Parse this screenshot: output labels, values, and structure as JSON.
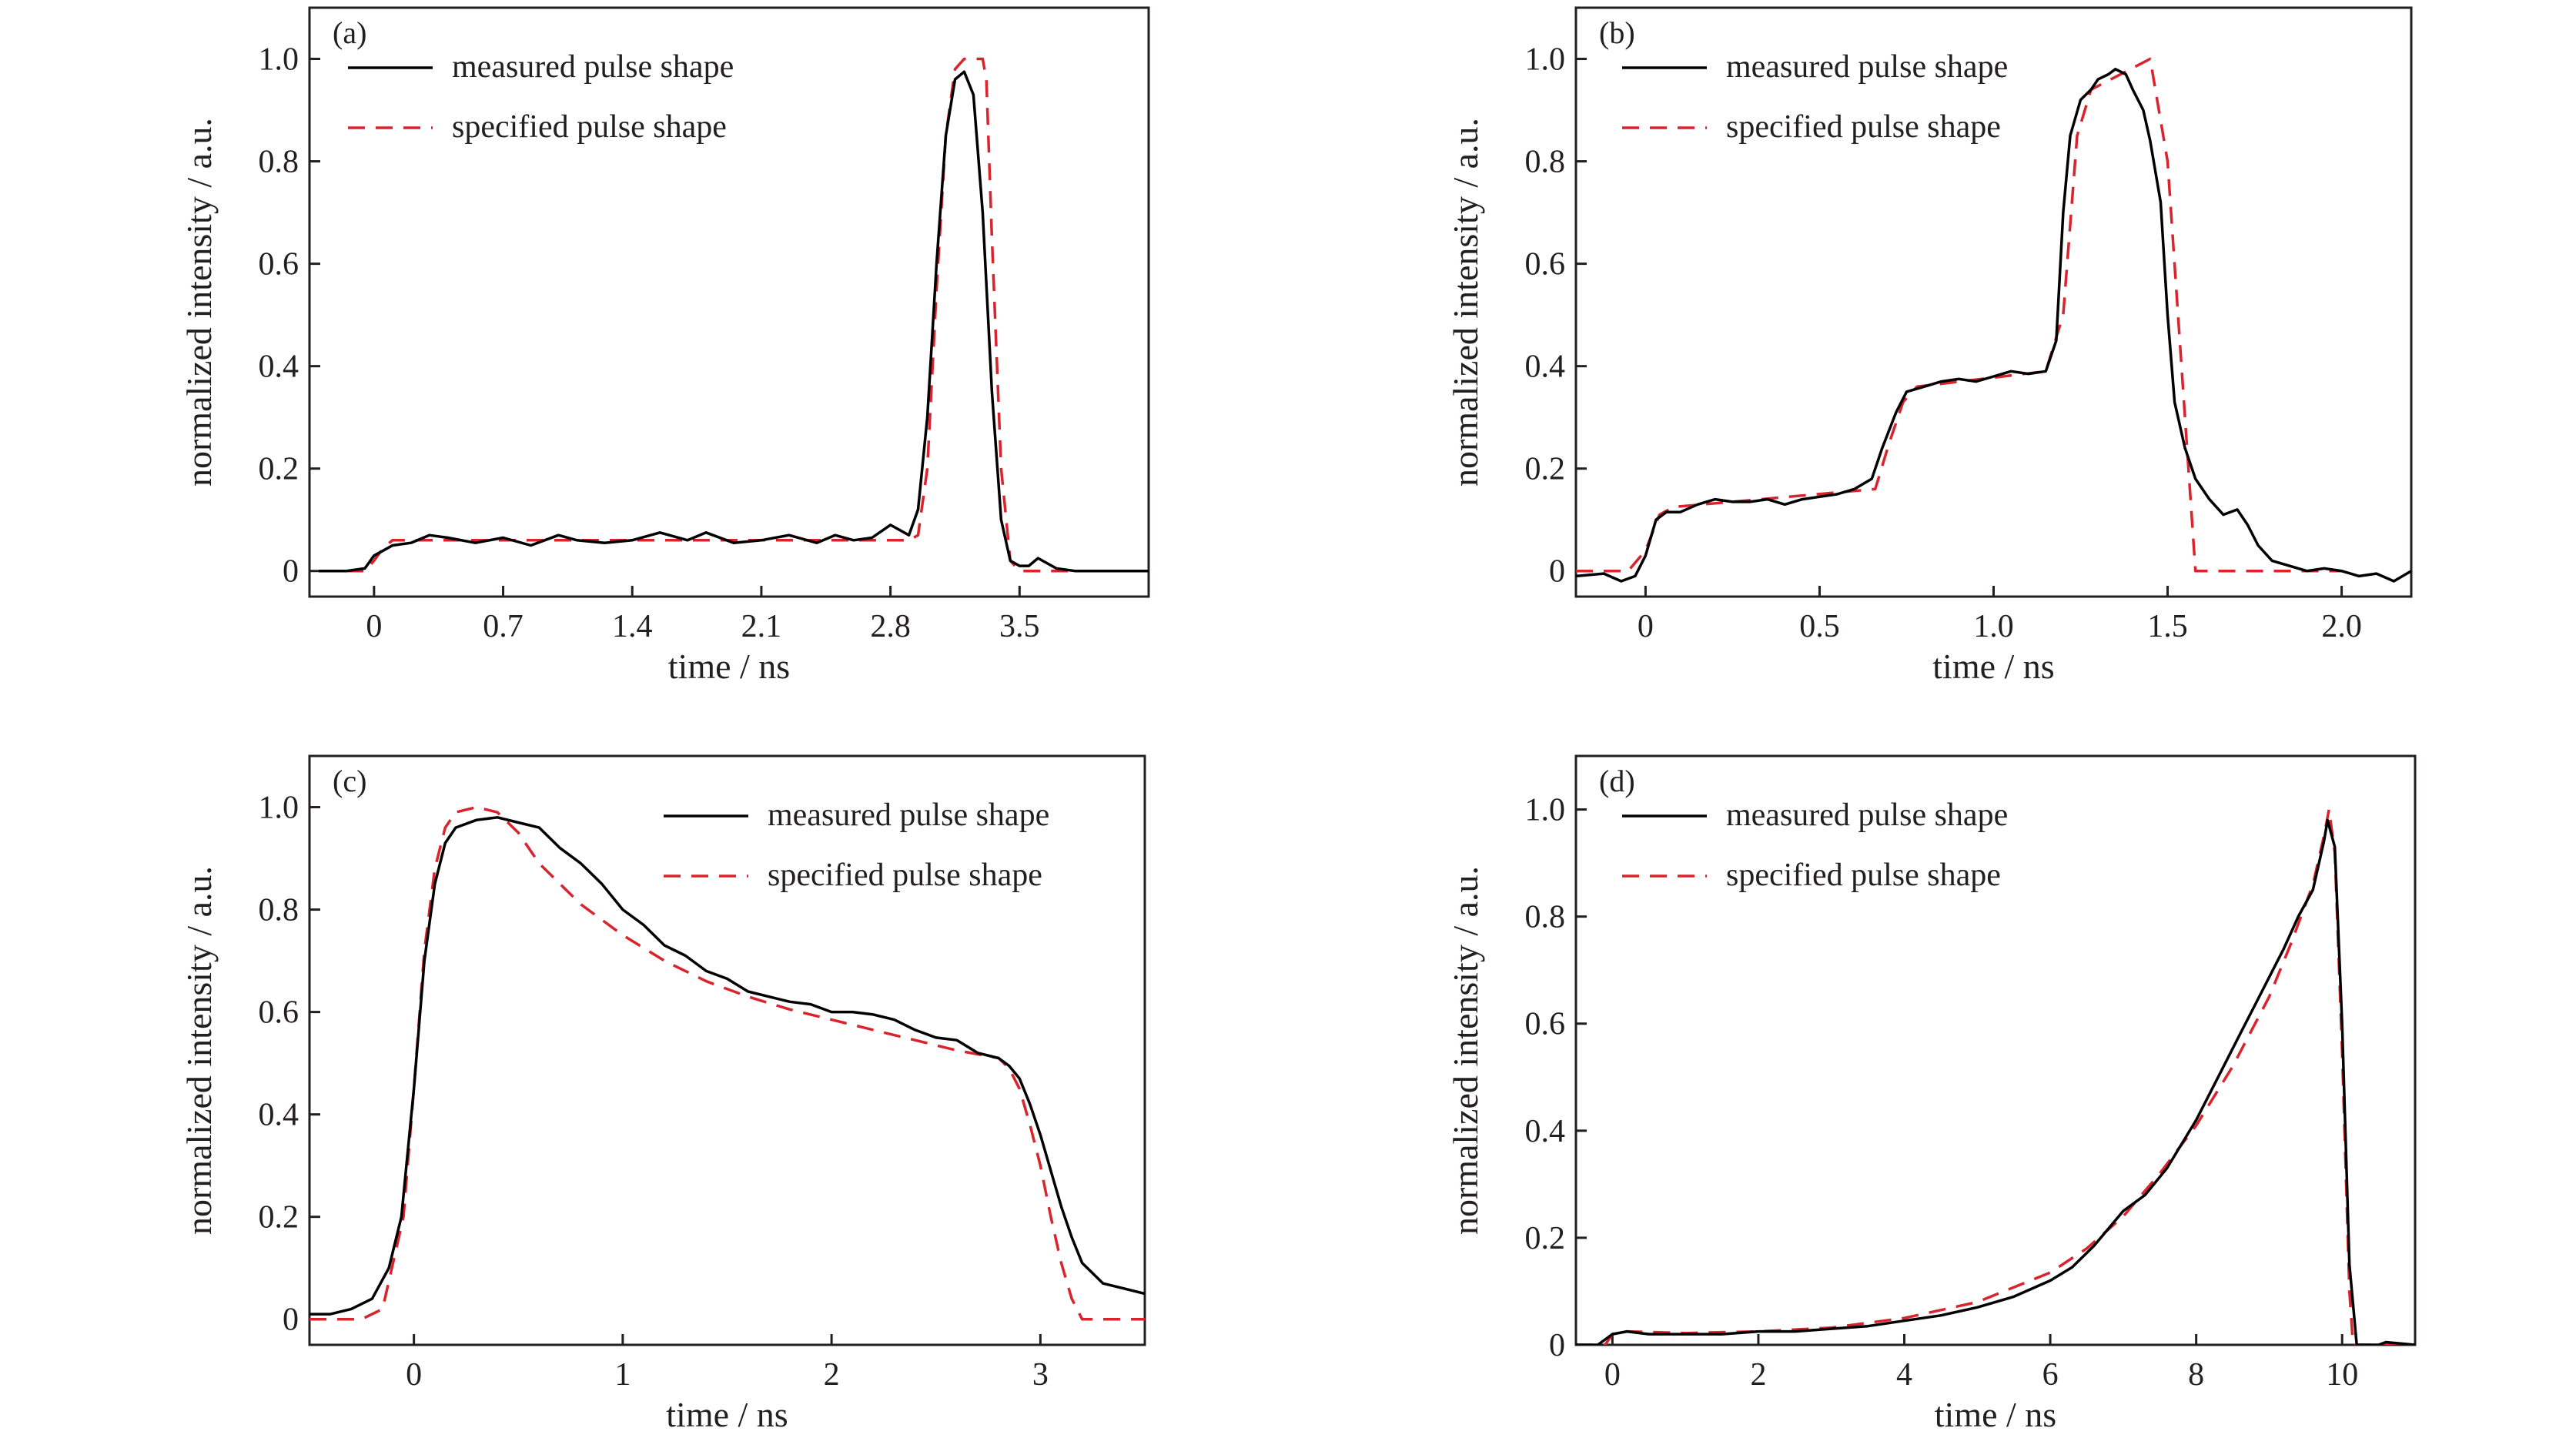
{
  "colors": {
    "measured": "#000000",
    "specified": "#d9232d",
    "axis": "#231f20"
  },
  "chart_data": [
    {
      "id": "a",
      "panel_label": "(a)",
      "type": "line",
      "xlabel": "time / ns",
      "ylabel": "normalized intensity / a.u.",
      "xlim": [
        -0.35,
        4.2
      ],
      "ylim": [
        -0.05,
        1.1
      ],
      "xticks": [
        0,
        0.7,
        1.4,
        2.1,
        2.8,
        3.5
      ],
      "xtick_labels": [
        "0",
        "0.7",
        "1.4",
        "2.1",
        "2.8",
        "3.5"
      ],
      "yticks": [
        0,
        0.2,
        0.4,
        0.6,
        0.8,
        1.0
      ],
      "ytick_labels": [
        "0",
        "0.2",
        "0.4",
        "0.6",
        "0.8",
        "1.0"
      ],
      "legend": {
        "position": "top-left",
        "entries": [
          "measured pulse shape",
          "specified pulse shape"
        ]
      },
      "series": [
        {
          "name": "measured pulse shape",
          "style": "solid",
          "x": [
            -0.3,
            -0.15,
            -0.05,
            0.0,
            0.1,
            0.2,
            0.3,
            0.4,
            0.55,
            0.7,
            0.85,
            1.0,
            1.1,
            1.25,
            1.4,
            1.55,
            1.7,
            1.8,
            1.95,
            2.1,
            2.25,
            2.4,
            2.5,
            2.6,
            2.7,
            2.8,
            2.9,
            2.95,
            3.0,
            3.05,
            3.1,
            3.15,
            3.2,
            3.25,
            3.3,
            3.35,
            3.4,
            3.45,
            3.5,
            3.55,
            3.6,
            3.7,
            3.8,
            3.9,
            4.2
          ],
          "y": [
            0,
            0,
            0.005,
            0.03,
            0.05,
            0.055,
            0.07,
            0.065,
            0.055,
            0.065,
            0.05,
            0.07,
            0.06,
            0.055,
            0.06,
            0.075,
            0.06,
            0.075,
            0.055,
            0.06,
            0.07,
            0.055,
            0.07,
            0.06,
            0.065,
            0.09,
            0.07,
            0.12,
            0.3,
            0.6,
            0.85,
            0.96,
            0.975,
            0.93,
            0.7,
            0.35,
            0.1,
            0.02,
            0.01,
            0.01,
            0.025,
            0.005,
            0,
            0,
            0
          ]
        },
        {
          "name": "specified pulse shape",
          "style": "dashed",
          "x": [
            -0.3,
            -0.05,
            0.0,
            0.05,
            0.1,
            2.9,
            2.95,
            3.0,
            3.05,
            3.1,
            3.15,
            3.2,
            3.3,
            3.32,
            3.35,
            3.4,
            3.45,
            3.5,
            3.55,
            4.2
          ],
          "y": [
            0,
            0,
            0.02,
            0.045,
            0.06,
            0.06,
            0.07,
            0.2,
            0.55,
            0.85,
            0.98,
            1.0,
            1.0,
            0.96,
            0.65,
            0.2,
            0.02,
            0,
            0,
            0
          ]
        }
      ]
    },
    {
      "id": "b",
      "panel_label": "(b)",
      "type": "line",
      "xlabel": "time / ns",
      "ylabel": "normalized intensity / a.u.",
      "xlim": [
        -0.2,
        2.2
      ],
      "ylim": [
        -0.05,
        1.1
      ],
      "xticks": [
        0,
        0.5,
        1.0,
        1.5,
        2.0
      ],
      "xtick_labels": [
        "0",
        "0.5",
        "1.0",
        "1.5",
        "2.0"
      ],
      "yticks": [
        0,
        0.2,
        0.4,
        0.6,
        0.8,
        1.0
      ],
      "ytick_labels": [
        "0",
        "0.2",
        "0.4",
        "0.6",
        "0.8",
        "1.0"
      ],
      "legend": {
        "position": "top-center",
        "entries": [
          "measured pulse shape",
          "specified pulse shape"
        ]
      },
      "series": [
        {
          "name": "measured pulse shape",
          "style": "solid",
          "x": [
            -0.2,
            -0.12,
            -0.07,
            -0.03,
            0.0,
            0.03,
            0.06,
            0.1,
            0.15,
            0.2,
            0.25,
            0.3,
            0.35,
            0.4,
            0.45,
            0.5,
            0.55,
            0.6,
            0.65,
            0.68,
            0.72,
            0.75,
            0.8,
            0.85,
            0.9,
            0.95,
            1.0,
            1.05,
            1.1,
            1.15,
            1.18,
            1.2,
            1.22,
            1.25,
            1.28,
            1.3,
            1.33,
            1.35,
            1.38,
            1.4,
            1.43,
            1.45,
            1.48,
            1.5,
            1.52,
            1.55,
            1.58,
            1.62,
            1.66,
            1.7,
            1.73,
            1.76,
            1.8,
            1.85,
            1.9,
            1.95,
            2.0,
            2.05,
            2.1,
            2.15,
            2.2
          ],
          "y": [
            -0.01,
            -0.005,
            -0.02,
            -0.01,
            0.03,
            0.1,
            0.115,
            0.115,
            0.13,
            0.14,
            0.135,
            0.135,
            0.14,
            0.13,
            0.14,
            0.145,
            0.15,
            0.16,
            0.18,
            0.24,
            0.31,
            0.35,
            0.36,
            0.37,
            0.375,
            0.37,
            0.38,
            0.39,
            0.385,
            0.39,
            0.45,
            0.7,
            0.85,
            0.92,
            0.94,
            0.96,
            0.97,
            0.98,
            0.97,
            0.94,
            0.9,
            0.84,
            0.72,
            0.5,
            0.33,
            0.24,
            0.18,
            0.14,
            0.11,
            0.12,
            0.09,
            0.05,
            0.02,
            0.01,
            0.0,
            0.005,
            0.0,
            -0.01,
            -0.005,
            -0.02,
            0.0
          ]
        },
        {
          "name": "specified pulse shape",
          "style": "dashed",
          "x": [
            -0.2,
            -0.05,
            0.0,
            0.04,
            0.08,
            0.66,
            0.7,
            0.74,
            0.78,
            1.15,
            1.2,
            1.24,
            1.28,
            1.45,
            1.5,
            1.55,
            1.58,
            2.0
          ],
          "y": [
            0,
            0,
            0.04,
            0.11,
            0.125,
            0.16,
            0.25,
            0.33,
            0.36,
            0.39,
            0.5,
            0.85,
            0.94,
            1.0,
            0.8,
            0.3,
            0.0,
            0.0
          ]
        }
      ]
    },
    {
      "id": "c",
      "panel_label": "(c)",
      "type": "line",
      "xlabel": "time / ns",
      "ylabel": "normalized intensity / a.u.",
      "xlim": [
        -0.5,
        3.5
      ],
      "ylim": [
        -0.05,
        1.1
      ],
      "xticks": [
        0,
        1,
        2,
        3
      ],
      "xtick_labels": [
        "0",
        "1",
        "2",
        "3"
      ],
      "yticks": [
        0,
        0.2,
        0.4,
        0.6,
        0.8,
        1.0
      ],
      "ytick_labels": [
        "0",
        "0.2",
        "0.4",
        "0.6",
        "0.8",
        "1.0"
      ],
      "legend": {
        "position": "top-right",
        "entries": [
          "measured pulse shape",
          "specified pulse shape"
        ]
      },
      "series": [
        {
          "name": "measured pulse shape",
          "style": "solid",
          "x": [
            -0.5,
            -0.4,
            -0.3,
            -0.2,
            -0.12,
            -0.06,
            0.0,
            0.05,
            0.1,
            0.15,
            0.2,
            0.3,
            0.4,
            0.5,
            0.6,
            0.7,
            0.8,
            0.9,
            1.0,
            1.1,
            1.2,
            1.3,
            1.4,
            1.5,
            1.6,
            1.7,
            1.8,
            1.9,
            2.0,
            2.1,
            2.2,
            2.3,
            2.4,
            2.5,
            2.6,
            2.7,
            2.8,
            2.85,
            2.9,
            2.95,
            3.0,
            3.05,
            3.1,
            3.15,
            3.2,
            3.3,
            3.4,
            3.5
          ],
          "y": [
            0.01,
            0.01,
            0.02,
            0.04,
            0.1,
            0.2,
            0.45,
            0.7,
            0.85,
            0.93,
            0.96,
            0.975,
            0.98,
            0.97,
            0.96,
            0.92,
            0.89,
            0.85,
            0.8,
            0.77,
            0.73,
            0.71,
            0.68,
            0.665,
            0.64,
            0.63,
            0.62,
            0.615,
            0.6,
            0.6,
            0.595,
            0.585,
            0.565,
            0.55,
            0.545,
            0.52,
            0.51,
            0.495,
            0.47,
            0.42,
            0.36,
            0.29,
            0.22,
            0.16,
            0.11,
            0.07,
            0.06,
            0.05
          ]
        },
        {
          "name": "specified pulse shape",
          "style": "dashed",
          "x": [
            -0.5,
            -0.25,
            -0.15,
            -0.05,
            0.0,
            0.05,
            0.1,
            0.15,
            0.2,
            0.3,
            0.4,
            0.5,
            0.6,
            0.8,
            1.0,
            1.2,
            1.4,
            1.6,
            1.8,
            2.0,
            2.2,
            2.4,
            2.6,
            2.8,
            2.85,
            2.9,
            2.95,
            3.0,
            3.05,
            3.1,
            3.15,
            3.2,
            3.5
          ],
          "y": [
            0,
            0,
            0.02,
            0.2,
            0.45,
            0.72,
            0.88,
            0.96,
            0.99,
            1.0,
            0.99,
            0.95,
            0.89,
            0.81,
            0.75,
            0.7,
            0.66,
            0.63,
            0.605,
            0.585,
            0.565,
            0.545,
            0.525,
            0.51,
            0.49,
            0.45,
            0.38,
            0.3,
            0.2,
            0.11,
            0.04,
            0.0,
            0.0
          ]
        }
      ]
    },
    {
      "id": "d",
      "panel_label": "(d)",
      "type": "line",
      "xlabel": "time / ns",
      "ylabel": "normalized intensity / a.u.",
      "xlim": [
        -0.5,
        11
      ],
      "ylim": [
        0,
        1.1
      ],
      "xticks": [
        0,
        2,
        4,
        6,
        8,
        10
      ],
      "xtick_labels": [
        "0",
        "2",
        "4",
        "6",
        "8",
        "10"
      ],
      "yticks": [
        0,
        0.2,
        0.4,
        0.6,
        0.8,
        1.0
      ],
      "ytick_labels": [
        "0",
        "0.2",
        "0.4",
        "0.6",
        "0.8",
        "1.0"
      ],
      "legend": {
        "position": "top-center",
        "entries": [
          "measured pulse shape",
          "specified pulse shape"
        ]
      },
      "series": [
        {
          "name": "measured pulse shape",
          "style": "solid",
          "x": [
            -0.5,
            -0.2,
            0.0,
            0.2,
            0.5,
            1.0,
            1.5,
            2.0,
            2.5,
            3.0,
            3.5,
            4.0,
            4.5,
            5.0,
            5.5,
            6.0,
            6.3,
            6.6,
            7.0,
            7.3,
            7.6,
            8.0,
            8.3,
            8.6,
            8.9,
            9.2,
            9.4,
            9.6,
            9.75,
            9.8,
            9.9,
            10.0,
            10.1,
            10.2,
            10.5,
            10.6,
            11.0
          ],
          "y": [
            0,
            0,
            0.02,
            0.025,
            0.02,
            0.02,
            0.02,
            0.025,
            0.025,
            0.03,
            0.035,
            0.045,
            0.055,
            0.07,
            0.09,
            0.12,
            0.145,
            0.185,
            0.25,
            0.28,
            0.33,
            0.42,
            0.5,
            0.58,
            0.66,
            0.74,
            0.8,
            0.85,
            0.94,
            0.98,
            0.93,
            0.6,
            0.15,
            0.0,
            0.0,
            0.005,
            0.0
          ]
        },
        {
          "name": "specified pulse shape",
          "style": "dashed",
          "x": [
            -0.5,
            -0.1,
            0.0,
            0.2,
            1.0,
            2.0,
            3.0,
            4.0,
            5.0,
            6.0,
            6.5,
            7.0,
            7.5,
            8.0,
            8.5,
            9.0,
            9.3,
            9.6,
            9.75,
            9.82,
            9.9,
            10.0,
            10.1,
            10.15,
            11.0
          ],
          "y": [
            0,
            0,
            0.02,
            0.025,
            0.022,
            0.025,
            0.032,
            0.05,
            0.08,
            0.135,
            0.18,
            0.24,
            0.32,
            0.41,
            0.52,
            0.65,
            0.75,
            0.86,
            0.95,
            1.0,
            0.92,
            0.55,
            0.1,
            0.0,
            0.0
          ]
        }
      ]
    }
  ]
}
